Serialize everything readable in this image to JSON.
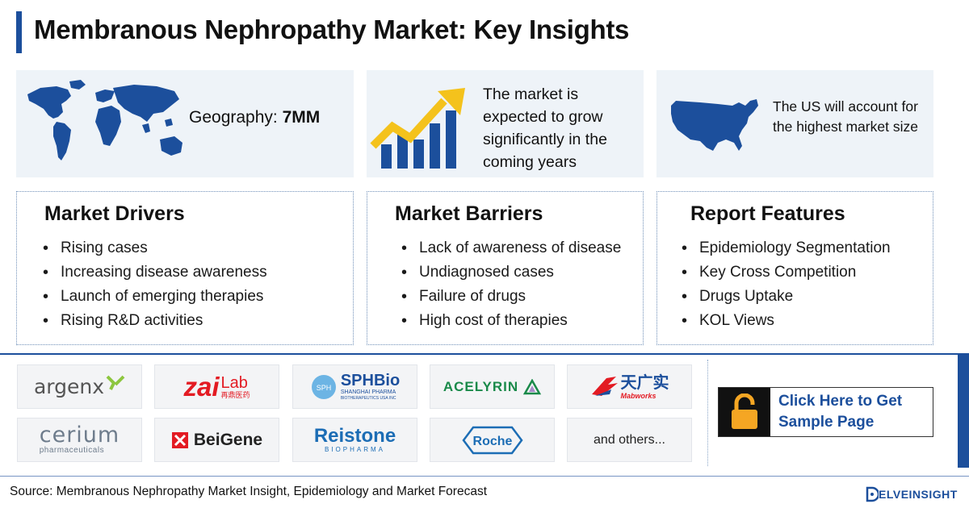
{
  "title": "Membranous Nephropathy Market: Key Insights",
  "highlights": {
    "geography_label": "Geography: ",
    "geography_value": "7MM",
    "growth_text": "The market is expected to grow significantly in the coming years",
    "us_text": "The US will account for the highest market size"
  },
  "panels": [
    {
      "title": "Market Drivers",
      "items": [
        "Rising cases",
        "Increasing disease awareness",
        "Launch of emerging therapies",
        "Rising R&D activities"
      ]
    },
    {
      "title": "Market Barriers",
      "items": [
        "Lack of awareness of disease",
        "Undiagnosed cases",
        "Failure of drugs",
        "High cost of therapies"
      ]
    },
    {
      "title": "Report Features",
      "items": [
        "Epidemiology Segmentation",
        "Key Cross Competition",
        "Drugs Uptake",
        "KOL Views"
      ]
    }
  ],
  "companies": {
    "argenx": "argenx",
    "zailab_main": "zai",
    "zailab_lab": "Lab",
    "zailab_cn": "再鼎医药",
    "sphbio_main": "SPHBio",
    "sphbio_sub1": "SHANGHAI PHARMA",
    "sphbio_sub2": "BIOTHERAPEUTICS USA INC",
    "sphbio_badge": "SPH",
    "acelyrin": "ACELYRIN",
    "mabworks_cn": "天广实",
    "mabworks": "Mabworks",
    "cerium_main": "cerium",
    "cerium_sub": "pharmaceuticals",
    "beigene": "BeiGene",
    "reistone_main": "Reistone",
    "reistone_sub": "BIOPHARMA",
    "roche": "Roche",
    "others": "and others..."
  },
  "cta": {
    "label_line1": "Click Here to Get",
    "label_line2": "Sample Page"
  },
  "footer": {
    "source": "Source: Membranous Nephropathy Market Insight, Epidemiology and Market Forecast",
    "brand": "ELVEINSIGHT"
  },
  "colors": {
    "accent": "#1c4f9c",
    "map_blue": "#1c4f9c",
    "arrow_yellow": "#f4c21c",
    "zai_red": "#e31b23",
    "acelyrin_green": "#1a8a4a",
    "lock_yellow": "#f5a623"
  }
}
